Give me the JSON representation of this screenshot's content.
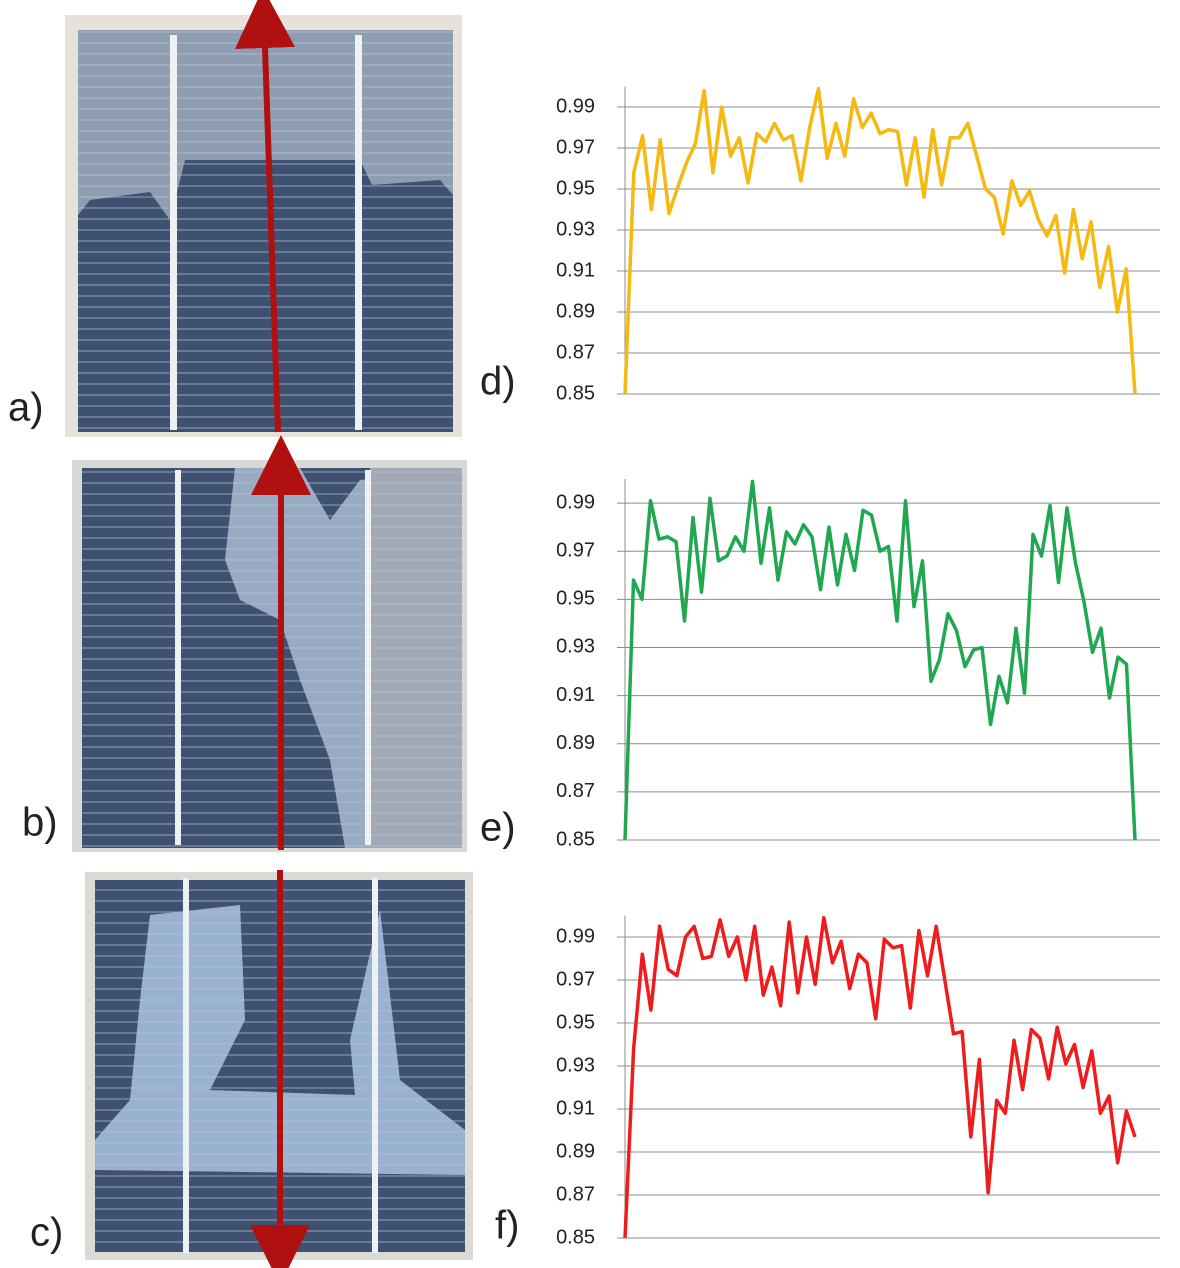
{
  "photo_panels": [
    {
      "label": "a)"
    },
    {
      "label": "b)"
    },
    {
      "label": "c)"
    }
  ],
  "chart_data": [
    {
      "type": "line",
      "panel_label": "d)",
      "color": "#f5b90f",
      "ylim": [
        0.85,
        1.0
      ],
      "yticks": [
        0.85,
        0.87,
        0.89,
        0.91,
        0.93,
        0.95,
        0.97,
        0.99
      ],
      "grid": true,
      "values": [
        0.85,
        0.958,
        0.976,
        0.94,
        0.974,
        0.938,
        0.951,
        0.963,
        0.972,
        0.998,
        0.958,
        0.99,
        0.966,
        0.975,
        0.953,
        0.977,
        0.973,
        0.982,
        0.974,
        0.976,
        0.954,
        0.98,
        0.999,
        0.965,
        0.982,
        0.966,
        0.994,
        0.98,
        0.987,
        0.977,
        0.979,
        0.978,
        0.952,
        0.975,
        0.946,
        0.979,
        0.952,
        0.975,
        0.975,
        0.982,
        0.966,
        0.95,
        0.946,
        0.928,
        0.954,
        0.942,
        0.949,
        0.935,
        0.927,
        0.937,
        0.909,
        0.94,
        0.916,
        0.934,
        0.902,
        0.922,
        0.89,
        0.911,
        0.85
      ]
    },
    {
      "type": "line",
      "panel_label": "e)",
      "color": "#1fa84f",
      "ylim": [
        0.85,
        1.0
      ],
      "yticks": [
        0.85,
        0.87,
        0.89,
        0.91,
        0.93,
        0.95,
        0.97,
        0.99
      ],
      "grid": true,
      "values": [
        0.85,
        0.958,
        0.95,
        0.991,
        0.975,
        0.976,
        0.974,
        0.941,
        0.984,
        0.953,
        0.992,
        0.966,
        0.968,
        0.976,
        0.97,
        0.999,
        0.965,
        0.988,
        0.958,
        0.978,
        0.973,
        0.981,
        0.976,
        0.954,
        0.98,
        0.956,
        0.977,
        0.962,
        0.987,
        0.985,
        0.97,
        0.972,
        0.941,
        0.991,
        0.947,
        0.966,
        0.916,
        0.925,
        0.944,
        0.937,
        0.922,
        0.929,
        0.93,
        0.898,
        0.918,
        0.907,
        0.938,
        0.911,
        0.977,
        0.968,
        0.989,
        0.957,
        0.988,
        0.965,
        0.949,
        0.928,
        0.938,
        0.909,
        0.926,
        0.923,
        0.85
      ]
    },
    {
      "type": "line",
      "panel_label": "f)",
      "color": "#ee1c1c",
      "ylim": [
        0.85,
        1.0
      ],
      "yticks": [
        0.85,
        0.87,
        0.89,
        0.91,
        0.93,
        0.95,
        0.97,
        0.99
      ],
      "grid": true,
      "values": [
        0.85,
        0.938,
        0.982,
        0.956,
        0.995,
        0.975,
        0.972,
        0.99,
        0.995,
        0.98,
        0.981,
        0.998,
        0.981,
        0.99,
        0.97,
        0.995,
        0.963,
        0.976,
        0.958,
        0.997,
        0.964,
        0.99,
        0.968,
        0.999,
        0.978,
        0.988,
        0.966,
        0.982,
        0.978,
        0.952,
        0.989,
        0.985,
        0.986,
        0.957,
        0.993,
        0.972,
        0.995,
        0.97,
        0.945,
        0.946,
        0.897,
        0.933,
        0.871,
        0.914,
        0.908,
        0.942,
        0.919,
        0.947,
        0.943,
        0.924,
        0.948,
        0.931,
        0.94,
        0.92,
        0.937,
        0.908,
        0.916,
        0.885,
        0.909,
        0.897
      ]
    }
  ]
}
